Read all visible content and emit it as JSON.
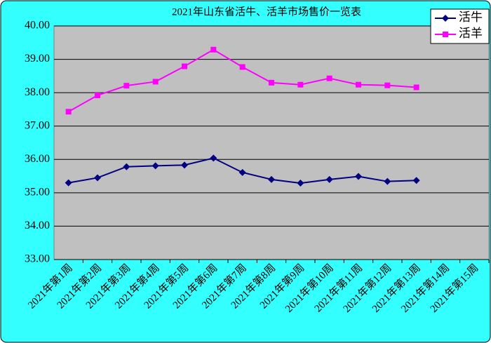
{
  "chart_data": {
    "type": "line",
    "title": "2021年山东省活牛、活羊市场售价一览表",
    "categories": [
      "2021年第1周",
      "2021年第2周",
      "2021年第3周",
      "2021年第4周",
      "2021年第5周",
      "2021年第6周",
      "2021年第7周",
      "2021年第8周",
      "2021年第9周",
      "2021年第10周",
      "2021年第11周",
      "2021年第12周",
      "2021年第13周",
      "2021年第14周",
      "2021年第15周"
    ],
    "series": [
      {
        "name": "活牛",
        "color": "#000080",
        "marker": "diamond",
        "values": [
          35.3,
          35.45,
          35.78,
          35.81,
          35.83,
          36.04,
          35.61,
          35.4,
          35.29,
          35.4,
          35.49,
          35.34,
          35.37,
          null,
          null
        ]
      },
      {
        "name": "活羊",
        "color": "#ff00ff",
        "marker": "square",
        "values": [
          37.43,
          37.92,
          38.21,
          38.33,
          38.79,
          39.29,
          38.77,
          38.3,
          38.24,
          38.43,
          38.24,
          38.22,
          38.16,
          null,
          null
        ]
      }
    ],
    "ylim": [
      33,
      40
    ],
    "yticks": [
      {
        "value": 33,
        "label": "33.00"
      },
      {
        "value": 34,
        "label": "34.00"
      },
      {
        "value": 35,
        "label": "35.00"
      },
      {
        "value": 36,
        "label": "36.00"
      },
      {
        "value": 37,
        "label": "37.00"
      },
      {
        "value": 38,
        "label": "38.00"
      },
      {
        "value": 39,
        "label": "39.00"
      },
      {
        "value": 40,
        "label": "40.00"
      }
    ],
    "grid": true,
    "legend": "upper right"
  }
}
